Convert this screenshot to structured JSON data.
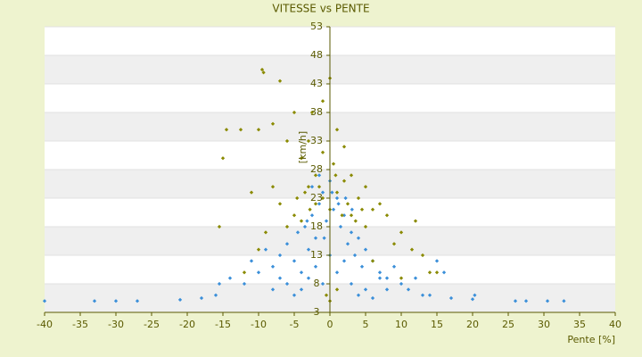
{
  "chart_data": {
    "type": "scatter",
    "title": "VITESSE vs PENTE",
    "x_label": "Pente [%]",
    "y_label": "[km/h]",
    "xlim": [
      -40,
      40
    ],
    "xticks": [
      -40,
      -35,
      -30,
      -25,
      -20,
      -15,
      -10,
      -5,
      0,
      5,
      10,
      15,
      20,
      25,
      30,
      35,
      40
    ],
    "ylim": [
      3,
      53
    ],
    "yticks": [
      3,
      8,
      13,
      18,
      23,
      28,
      33,
      38,
      43,
      48,
      53
    ],
    "banded_grid": true,
    "series": [
      {
        "color": "#8a8a00",
        "x": [
          -9.5,
          -9.3,
          -7,
          0,
          -1,
          -14.5,
          -15,
          -8,
          -10,
          -12.5,
          -2.5,
          -5,
          -3,
          1,
          2,
          -6,
          -4,
          -1,
          0.5,
          3,
          -2,
          5,
          7,
          -8,
          -11,
          -15.5,
          12,
          11.5,
          13,
          14,
          8,
          10,
          -7,
          -3,
          4,
          6,
          -5,
          -6,
          9,
          2,
          1,
          -1,
          0,
          -2,
          3,
          5,
          -4,
          -9,
          -10,
          15,
          10,
          6,
          -12,
          0,
          -0.5,
          1,
          -3.5,
          2.5,
          4.5,
          -1.5,
          0.8,
          -2.8,
          3.6,
          -4.6,
          1.7
        ],
        "y": [
          45.5,
          45,
          43.5,
          44,
          40,
          35,
          30,
          36,
          35,
          35,
          38,
          38,
          33,
          35,
          32,
          33,
          30,
          31,
          29,
          27,
          27,
          25,
          22,
          25,
          24,
          18,
          19,
          14,
          13,
          10,
          20,
          17,
          22,
          25,
          23,
          21,
          20,
          18,
          15,
          26,
          24,
          23,
          21,
          22,
          20,
          18,
          19,
          17,
          14,
          10,
          9,
          12,
          10,
          5,
          6,
          7,
          24,
          22,
          21,
          25,
          27,
          21,
          19,
          23,
          20
        ]
      },
      {
        "color": "#3b8fd9",
        "x": [
          -40,
          -33,
          -30,
          -27,
          -21,
          -18,
          -16,
          -15.5,
          32.8,
          30.5,
          27.5,
          26,
          20,
          20.3,
          17,
          16,
          15,
          -14,
          -12,
          -11,
          -10,
          -9,
          -8,
          -7,
          -6,
          -5,
          -4.5,
          -4,
          -3.5,
          -3,
          -2.5,
          -2,
          -1.5,
          -1,
          -0.5,
          0,
          0.5,
          1,
          1.5,
          2,
          2.5,
          3,
          3.5,
          4,
          4.5,
          5,
          6,
          7,
          8,
          9,
          10,
          11,
          12,
          13,
          14,
          -6,
          -5,
          -4,
          -3,
          -2,
          -1,
          0,
          1,
          2,
          3,
          4,
          5,
          6,
          -8,
          -7,
          7,
          8,
          -2.5,
          -1.5,
          0.3,
          1.2,
          2.2,
          -3.2,
          3.1,
          -0.8
        ],
        "y": [
          5,
          5,
          5,
          5,
          5.2,
          5.5,
          6,
          8,
          5,
          5,
          5,
          5,
          5.3,
          6,
          5.5,
          10,
          12,
          9,
          8,
          12,
          10,
          14,
          11,
          13,
          15,
          12,
          17,
          10,
          18,
          14,
          20,
          16,
          22,
          24,
          19,
          26,
          21,
          23,
          18,
          20,
          15,
          17,
          13,
          16,
          11,
          14,
          12,
          10,
          9,
          11,
          8,
          7,
          9,
          6,
          6,
          8,
          6,
          7,
          9,
          11,
          8,
          13,
          10,
          12,
          8,
          6,
          7,
          5.5,
          7,
          9,
          9,
          7,
          25,
          27,
          24,
          22,
          23,
          19,
          21,
          16
        ]
      }
    ]
  }
}
